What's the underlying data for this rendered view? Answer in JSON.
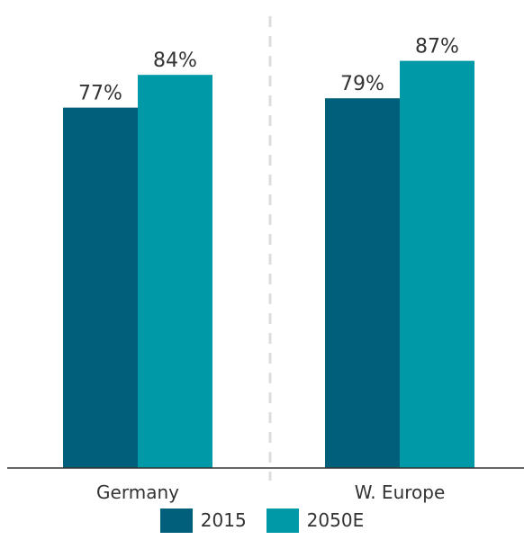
{
  "chart_data": {
    "type": "bar",
    "categories": [
      "Germany",
      "W. Europe"
    ],
    "series": [
      {
        "name": "2015",
        "values": [
          77,
          79
        ],
        "labels": [
          "77%",
          "79%"
        ],
        "color": "#005f7a"
      },
      {
        "name": "2050E",
        "values": [
          84,
          87
        ],
        "labels": [
          "84%",
          "87%"
        ],
        "color": "#0099a8"
      }
    ],
    "unit": "%",
    "ylim": [
      0,
      100
    ],
    "grid": false,
    "separator": "dashed",
    "legend_position": "bottom"
  }
}
